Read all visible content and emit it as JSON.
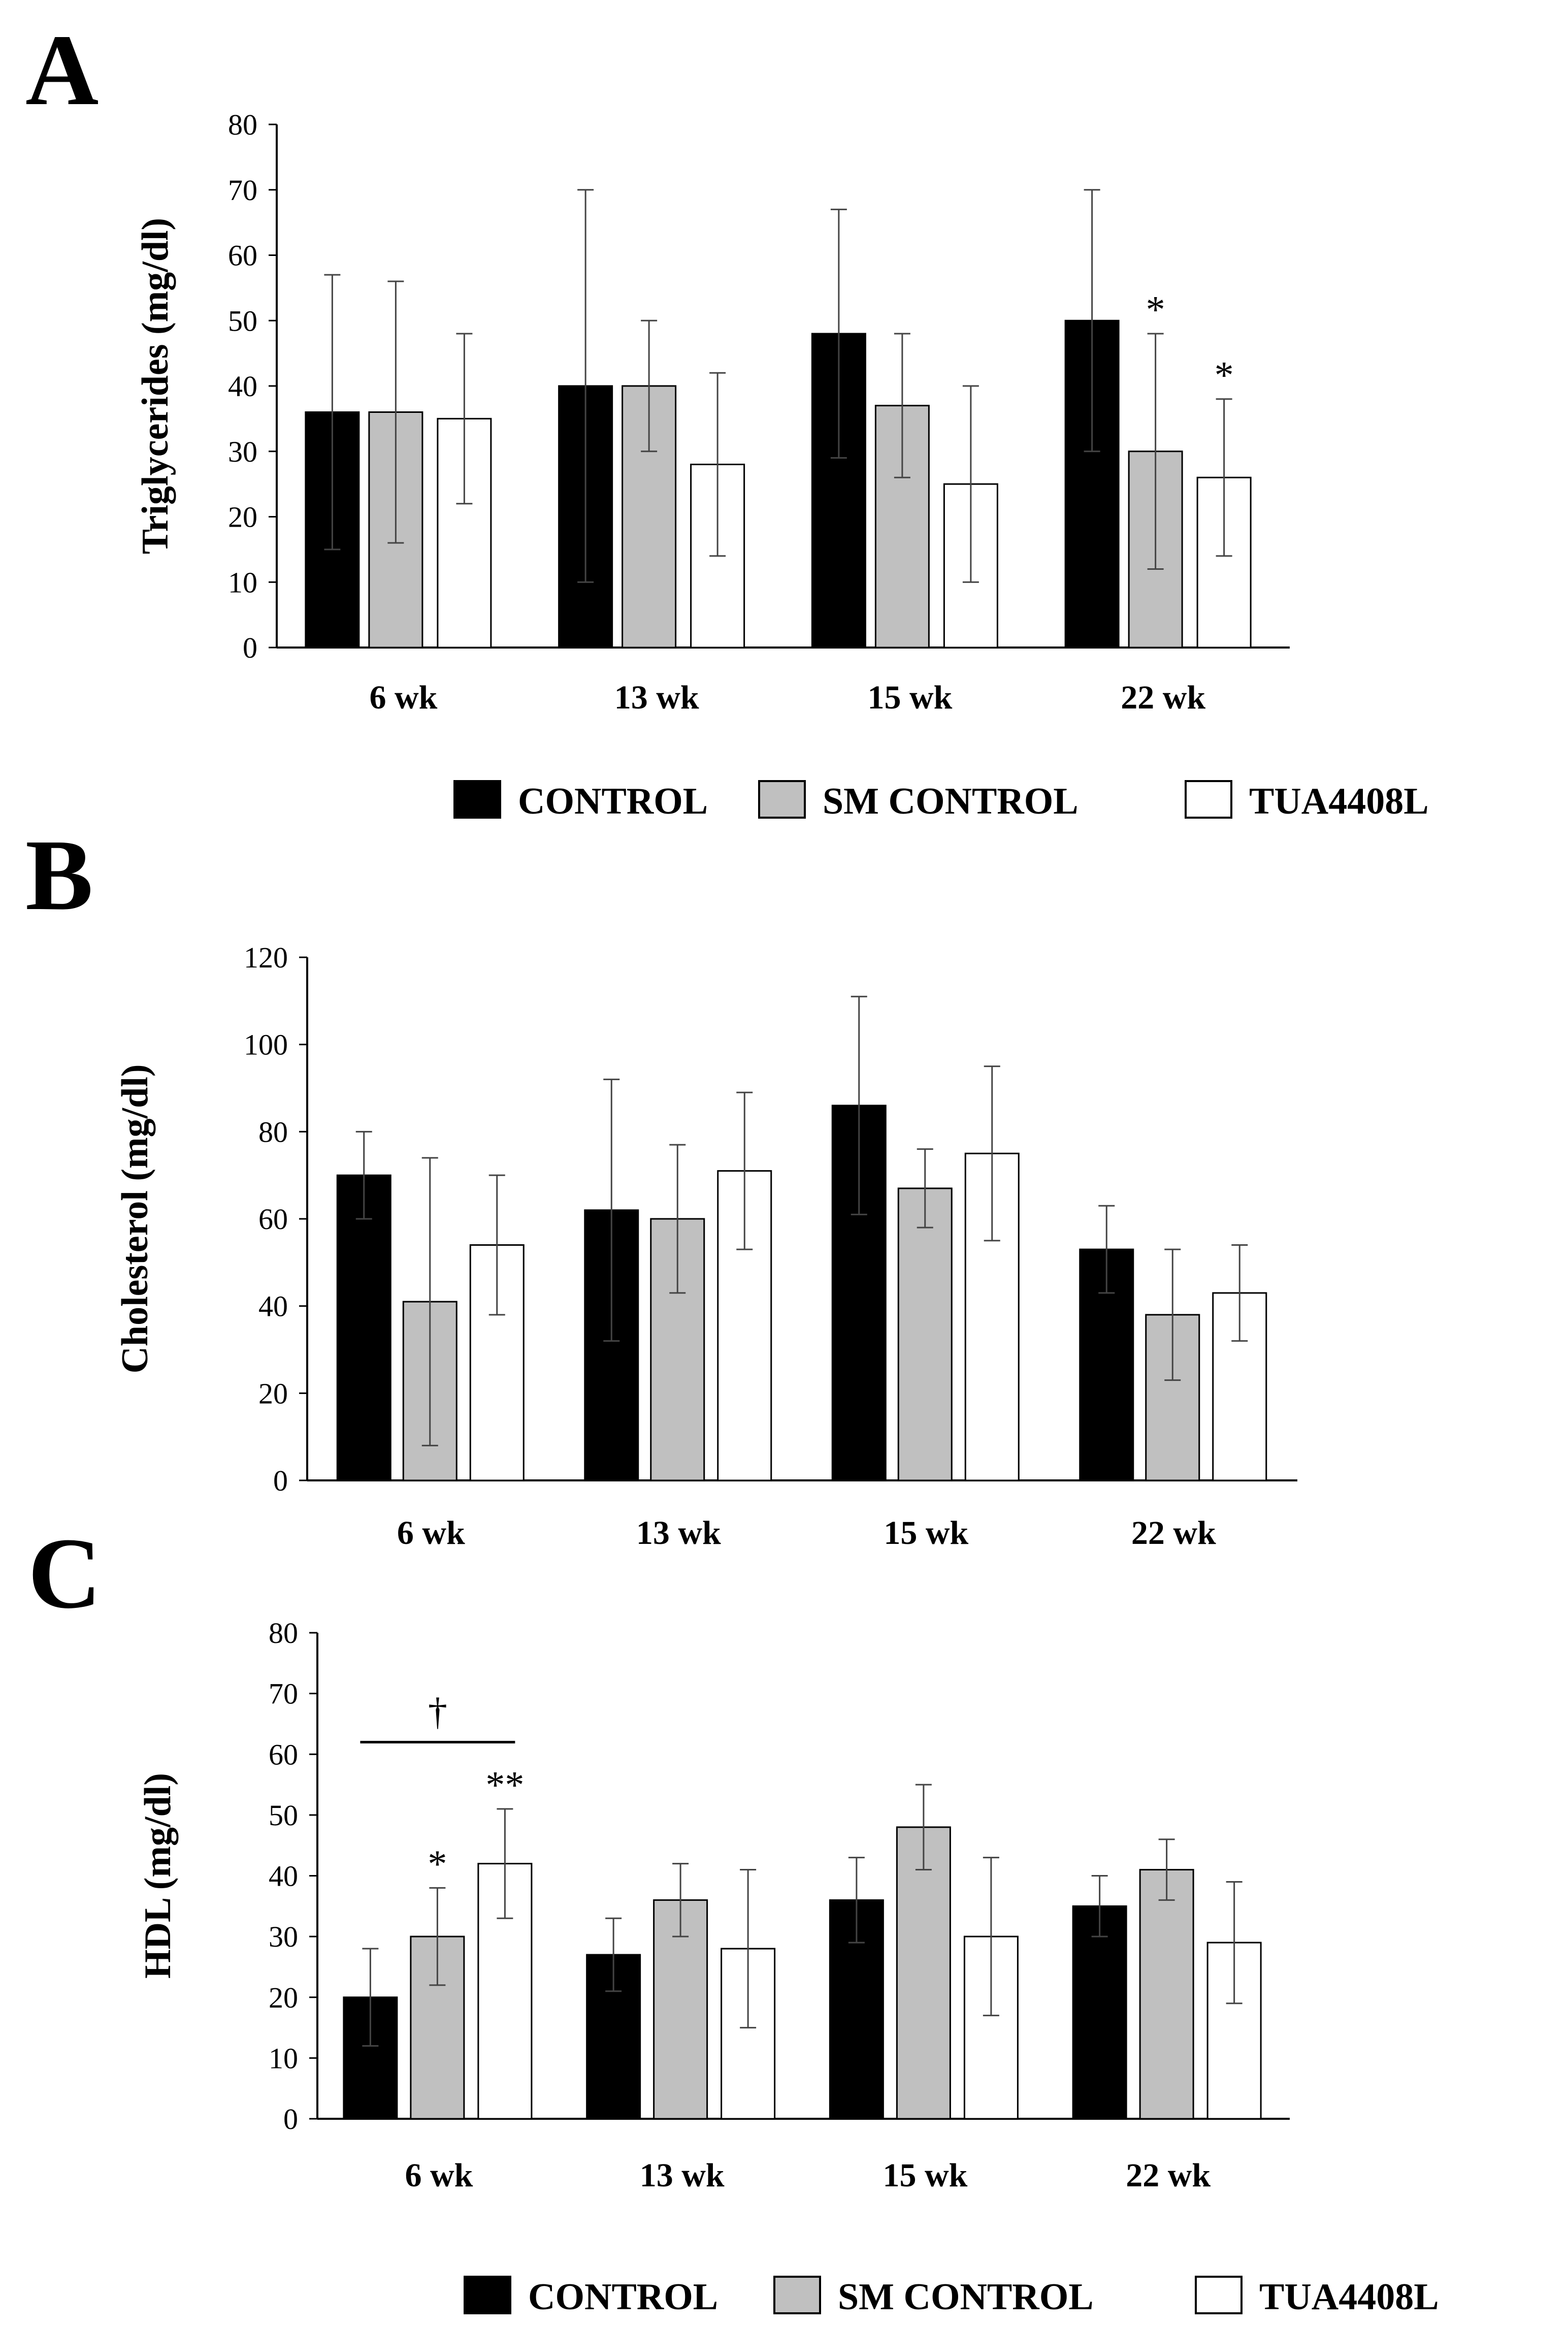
{
  "legend": {
    "entries": [
      "CONTROL",
      "SM CONTROL",
      "TUA4408L"
    ]
  },
  "series_colors": {
    "CONTROL": "#000000",
    "SM CONTROL": "#c0c0c0",
    "TUA4408L": "#ffffff"
  },
  "chart_data": [
    {
      "panel": "A",
      "type": "bar",
      "title": "",
      "ylabel": "Triglycerides  (mg/dl)",
      "xlabel": "",
      "categories": [
        "6 wk",
        "13 wk",
        "15 wk",
        "22 wk"
      ],
      "ylim": [
        0,
        80
      ],
      "yticks": [
        0,
        10,
        20,
        30,
        40,
        50,
        60,
        70,
        80
      ],
      "series": [
        {
          "name": "CONTROL",
          "values": [
            36,
            40,
            48,
            50
          ],
          "errors": [
            21,
            30,
            19,
            20
          ]
        },
        {
          "name": "SM CONTROL",
          "values": [
            36,
            40,
            37,
            30
          ],
          "errors": [
            20,
            10,
            11,
            18
          ]
        },
        {
          "name": "TUA4408L",
          "values": [
            35,
            28,
            25,
            26
          ],
          "errors": [
            13,
            14,
            15,
            12
          ]
        }
      ],
      "annotations": [
        {
          "text": "*",
          "category": "22 wk",
          "series": "SM CONTROL"
        },
        {
          "text": "*",
          "category": "22 wk",
          "series": "TUA4408L"
        }
      ],
      "legend": "below"
    },
    {
      "panel": "B",
      "type": "bar",
      "title": "",
      "ylabel": "Cholesterol (mg/dl)",
      "xlabel": "",
      "categories": [
        "6 wk",
        "13 wk",
        "15 wk",
        "22 wk"
      ],
      "ylim": [
        0,
        120
      ],
      "yticks": [
        0,
        20,
        40,
        60,
        80,
        100,
        120
      ],
      "series": [
        {
          "name": "CONTROL",
          "values": [
            70,
            62,
            86,
            53
          ],
          "errors": [
            10,
            30,
            25,
            10
          ]
        },
        {
          "name": "SM CONTROL",
          "values": [
            41,
            60,
            67,
            38
          ],
          "errors": [
            33,
            17,
            9,
            15
          ]
        },
        {
          "name": "TUA4408L",
          "values": [
            54,
            71,
            75,
            43
          ],
          "errors": [
            16,
            18,
            20,
            11
          ]
        }
      ],
      "annotations": [],
      "legend": "none"
    },
    {
      "panel": "C",
      "type": "bar",
      "title": "",
      "ylabel": "HDL (mg/dl)",
      "xlabel": "",
      "categories": [
        "6 wk",
        "13 wk",
        "15 wk",
        "22 wk"
      ],
      "ylim": [
        0,
        80
      ],
      "yticks": [
        0,
        10,
        20,
        30,
        40,
        50,
        60,
        70,
        80
      ],
      "series": [
        {
          "name": "CONTROL",
          "values": [
            20,
            27,
            36,
            35
          ],
          "errors": [
            8,
            6,
            7,
            5
          ]
        },
        {
          "name": "SM CONTROL",
          "values": [
            30,
            36,
            48,
            41
          ],
          "errors": [
            8,
            6,
            7,
            5
          ]
        },
        {
          "name": "TUA4408L",
          "values": [
            42,
            28,
            30,
            29
          ],
          "errors": [
            9,
            13,
            13,
            10
          ]
        }
      ],
      "annotations": [
        {
          "text": "*",
          "category": "6 wk",
          "series": "SM CONTROL"
        },
        {
          "text": "**",
          "category": "6 wk",
          "series": "TUA4408L"
        },
        {
          "text": "†",
          "category": "6 wk",
          "bracket_from": "CONTROL",
          "bracket_to": "TUA4408L",
          "value": 62
        }
      ],
      "legend": "below"
    }
  ]
}
